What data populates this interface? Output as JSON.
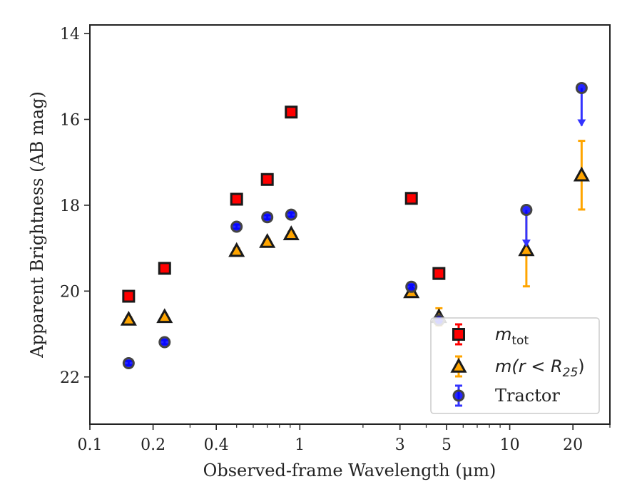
{
  "chart_data": {
    "type": "scatter",
    "title": "",
    "xlabel": "Observed-frame Wavelength (μm)",
    "ylabel": "Apparent Brightness (AB mag)",
    "xscale": "log",
    "xlim": [
      0.1,
      30
    ],
    "ylim": [
      23.1,
      13.8
    ],
    "y_inverted": true,
    "xticks": [
      {
        "value": 0.1,
        "label": "0.1"
      },
      {
        "value": 0.2,
        "label": "0.2"
      },
      {
        "value": 0.4,
        "label": "0.4"
      },
      {
        "value": 1,
        "label": "1"
      },
      {
        "value": 3,
        "label": "3"
      },
      {
        "value": 5,
        "label": "5"
      },
      {
        "value": 10,
        "label": "10"
      },
      {
        "value": 20,
        "label": "20"
      }
    ],
    "yticks": [
      {
        "value": 14,
        "label": "14"
      },
      {
        "value": 16,
        "label": "16"
      },
      {
        "value": 18,
        "label": "18"
      },
      {
        "value": 20,
        "label": "20"
      },
      {
        "value": 22,
        "label": "22"
      }
    ],
    "grid": false,
    "legend_position": "lower-right",
    "series": [
      {
        "name": "m_tot",
        "legend": {
          "base": "m",
          "sub": "tot"
        },
        "marker": "square",
        "color": "#ff0000",
        "errorbar_color": "#ff0000",
        "points": [
          {
            "x": 0.153,
            "y": 20.12,
            "err": 0.05
          },
          {
            "x": 0.227,
            "y": 19.47,
            "err": 0.05
          },
          {
            "x": 0.5,
            "y": 17.86,
            "err": 0.05
          },
          {
            "x": 0.7,
            "y": 17.4,
            "err": 0.05
          },
          {
            "x": 0.91,
            "y": 15.83,
            "err": 0.05
          },
          {
            "x": 3.4,
            "y": 17.84,
            "err": 0.05
          },
          {
            "x": 4.6,
            "y": 19.59,
            "err": 0.05
          }
        ]
      },
      {
        "name": "m(r < R25)",
        "legend": {
          "base": "m(r < R",
          "sub": "25",
          "tail": ")"
        },
        "marker": "triangle",
        "color": "#ffa500",
        "errorbar_color": "#ffa500",
        "points": [
          {
            "x": 0.153,
            "y": 20.66,
            "err": 0.05
          },
          {
            "x": 0.227,
            "y": 20.6,
            "err": 0.05
          },
          {
            "x": 0.5,
            "y": 19.06,
            "err": 0.05
          },
          {
            "x": 0.7,
            "y": 18.85,
            "err": 0.05
          },
          {
            "x": 0.91,
            "y": 18.67,
            "err": 0.05
          },
          {
            "x": 3.4,
            "y": 20.02,
            "err": 0.05
          },
          {
            "x": 4.6,
            "y": 20.6,
            "err": 0.2
          },
          {
            "x": 12.0,
            "y": 19.04,
            "err": 0.85
          },
          {
            "x": 22.0,
            "y": 17.3,
            "err": 0.8
          }
        ]
      },
      {
        "name": "Tractor",
        "legend": {
          "base": "Tractor",
          "sub": ""
        },
        "marker": "circle",
        "color": "#0000ff",
        "errorbar_color": "#3333ff",
        "points": [
          {
            "x": 0.153,
            "y": 21.68,
            "err": 0.05
          },
          {
            "x": 0.227,
            "y": 21.19,
            "err": 0.05
          },
          {
            "x": 0.5,
            "y": 18.5,
            "err": 0.05
          },
          {
            "x": 0.7,
            "y": 18.28,
            "err": 0.05
          },
          {
            "x": 0.91,
            "y": 18.22,
            "err": 0.05
          },
          {
            "x": 3.4,
            "y": 19.9,
            "err": 0.05
          },
          {
            "x": 4.6,
            "y": 20.68,
            "err": 0.05
          },
          {
            "x": 12.0,
            "y": 18.11,
            "upper_limit": true,
            "limit_to": 18.95
          },
          {
            "x": 22.0,
            "y": 15.27,
            "upper_limit": true,
            "limit_to": 16.15
          }
        ]
      }
    ]
  }
}
